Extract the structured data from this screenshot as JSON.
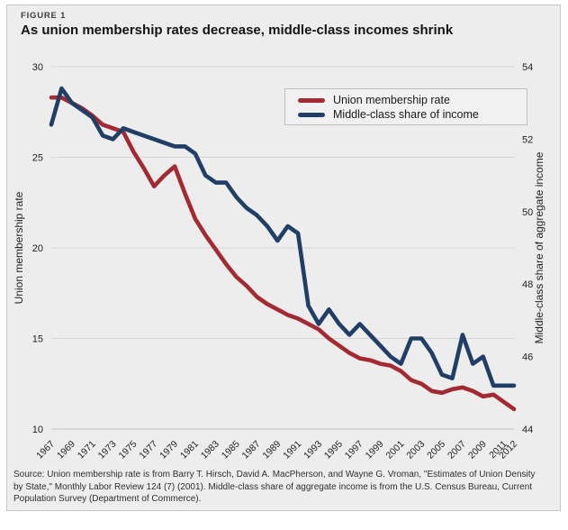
{
  "header": {
    "figure_label": "FIGURE 1",
    "title": "As union membership rates decrease, middle-class incomes shrink"
  },
  "footer": {
    "source": "Source: Union membership rate is from Barry T. Hirsch, David A. MacPherson, and Wayne G. Vroman, \"Estimates of Union Density by State,\" Monthly Labor Review 124 (7) (2001). Middle-class share of aggregate income is from the U.S. Census Bureau, Current Population Survey (Department of Commerce)."
  },
  "colors": {
    "panel_background": "#EDEDED",
    "panel_border": "#C7C7C7",
    "gridline": "#D7D7D7",
    "axis_line": "#C4C4C4",
    "union_red": "#A32A33",
    "middle_class_blue": "#203E66"
  },
  "chart_data": {
    "type": "line",
    "title": "As union membership rates decrease, middle-class incomes shrink",
    "grid": "horizontal",
    "legend_position": "top-right",
    "x": [
      1967,
      1968,
      1969,
      1970,
      1971,
      1972,
      1973,
      1974,
      1975,
      1976,
      1977,
      1978,
      1979,
      1980,
      1981,
      1982,
      1983,
      1984,
      1985,
      1986,
      1987,
      1988,
      1989,
      1990,
      1991,
      1992,
      1993,
      1994,
      1995,
      1996,
      1997,
      1998,
      1999,
      2000,
      2001,
      2002,
      2003,
      2004,
      2005,
      2006,
      2007,
      2008,
      2009,
      2010,
      2011,
      2012
    ],
    "x_tick_labels": [
      "1967",
      "1969",
      "1971",
      "1973",
      "1975",
      "1977",
      "1979",
      "1981",
      "1983",
      "1985",
      "1987",
      "1989",
      "1991",
      "1993",
      "1995",
      "1997",
      "1999",
      "2001",
      "2003",
      "2005",
      "2007",
      "2009",
      "2011",
      "2012"
    ],
    "left_axis": {
      "label": "Union membership rate",
      "min": 10,
      "max": 30,
      "ticks": [
        30,
        25,
        20,
        15,
        10
      ]
    },
    "right_axis": {
      "label": "Middle-class share of aggregate income",
      "min": 44,
      "max": 54,
      "ticks": [
        54,
        52,
        50,
        48,
        46,
        44
      ]
    },
    "series": [
      {
        "name": "Union membership rate",
        "axis": "left",
        "color": "#A32A33",
        "values": [
          28.3,
          28.3,
          28.0,
          27.7,
          27.3,
          26.8,
          26.6,
          26.4,
          25.3,
          24.4,
          23.4,
          24.0,
          24.5,
          23.0,
          21.6,
          20.7,
          19.9,
          19.1,
          18.4,
          17.9,
          17.3,
          16.9,
          16.6,
          16.3,
          16.1,
          15.8,
          15.5,
          15.0,
          14.6,
          14.2,
          13.9,
          13.8,
          13.6,
          13.5,
          13.2,
          12.7,
          12.5,
          12.1,
          12.0,
          12.2,
          12.3,
          12.1,
          11.8,
          11.9,
          11.5,
          11.1
        ]
      },
      {
        "name": "Middle-class share of income",
        "axis": "right",
        "color": "#203E66",
        "values": [
          52.4,
          53.4,
          53.0,
          52.8,
          52.6,
          52.1,
          52.0,
          52.3,
          52.2,
          52.1,
          52.0,
          51.9,
          51.8,
          51.8,
          51.6,
          51.0,
          50.8,
          50.8,
          50.4,
          50.1,
          49.9,
          49.6,
          49.2,
          49.6,
          49.4,
          47.4,
          46.9,
          47.3,
          46.9,
          46.6,
          46.9,
          46.6,
          46.3,
          46.0,
          45.8,
          46.5,
          46.5,
          46.1,
          45.5,
          45.4,
          46.6,
          45.8,
          46.0,
          45.2,
          45.2,
          45.2
        ]
      }
    ]
  }
}
